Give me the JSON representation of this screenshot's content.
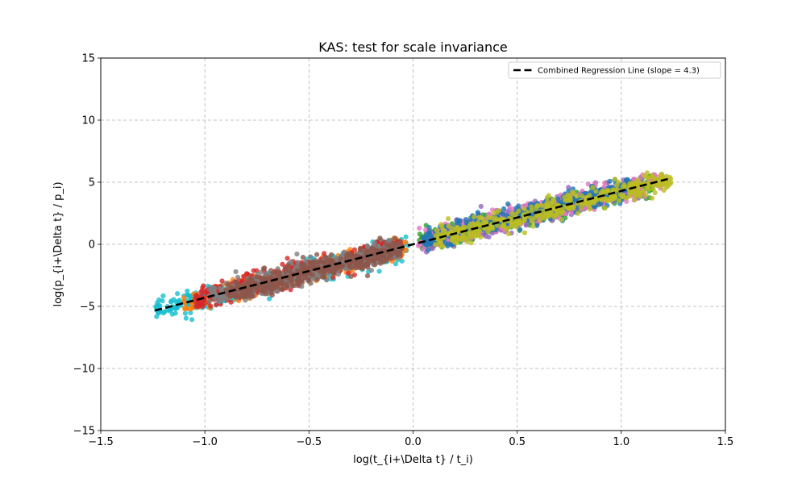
{
  "chart_data": {
    "type": "scatter",
    "title": "KAS: test for scale invariance",
    "xlabel": "log(t_{i+\\Delta t} / t_i)",
    "ylabel": "log(p_{i+\\Delta t} / p_i)",
    "xlim": [
      -1.5,
      1.5
    ],
    "ylim": [
      -15,
      15
    ],
    "xticks": [
      -1.5,
      -1.0,
      -0.5,
      0.0,
      0.5,
      1.0,
      1.5
    ],
    "xtick_labels": [
      "−1.5",
      "−1.0",
      "−0.5",
      "0.0",
      "0.5",
      "1.0",
      "1.5"
    ],
    "yticks": [
      -15,
      -10,
      -5,
      0,
      5,
      10,
      15
    ],
    "ytick_labels": [
      "−15",
      "−10",
      "−5",
      "0",
      "5",
      "10",
      "15"
    ],
    "grid": true,
    "legend_position": "top-right",
    "regression": {
      "label": "Combined Regression Line (slope = 4.3)",
      "slope": 4.3,
      "intercept": 0.0,
      "x_range": [
        -1.24,
        1.24
      ],
      "color": "#000000"
    },
    "clusters": [
      {
        "color": "#17becf",
        "x_range": [
          -1.24,
          -0.02
        ],
        "y_range": [
          -6.3,
          0.6
        ]
      },
      {
        "color": "#ff7f0e",
        "x_range": [
          -1.1,
          -0.03
        ],
        "y_range": [
          -5.2,
          0.5
        ]
      },
      {
        "color": "#d62728",
        "x_range": [
          -1.05,
          -0.05
        ],
        "y_range": [
          -5.0,
          0.2
        ]
      },
      {
        "color": "#7f7f7f",
        "x_range": [
          -0.98,
          -0.06
        ],
        "y_range": [
          -4.6,
          1.0
        ]
      },
      {
        "color": "#8c564b",
        "x_range": [
          -0.9,
          -0.05
        ],
        "y_range": [
          -4.2,
          0.5
        ]
      },
      {
        "color": "#2ca02c",
        "x_range": [
          0.03,
          1.15
        ],
        "y_range": [
          -1.0,
          5.5
        ]
      },
      {
        "color": "#9467bd",
        "x_range": [
          0.05,
          1.1
        ],
        "y_range": [
          -1.0,
          5.7
        ]
      },
      {
        "color": "#e377c2",
        "x_range": [
          0.02,
          1.2
        ],
        "y_range": [
          -1.1,
          5.6
        ]
      },
      {
        "color": "#1f77b4",
        "x_range": [
          0.05,
          1.05
        ],
        "y_range": [
          -0.8,
          5.2
        ]
      },
      {
        "color": "#bcbd22",
        "x_range": [
          0.1,
          1.24
        ],
        "y_range": [
          -0.5,
          6.3
        ]
      }
    ]
  }
}
